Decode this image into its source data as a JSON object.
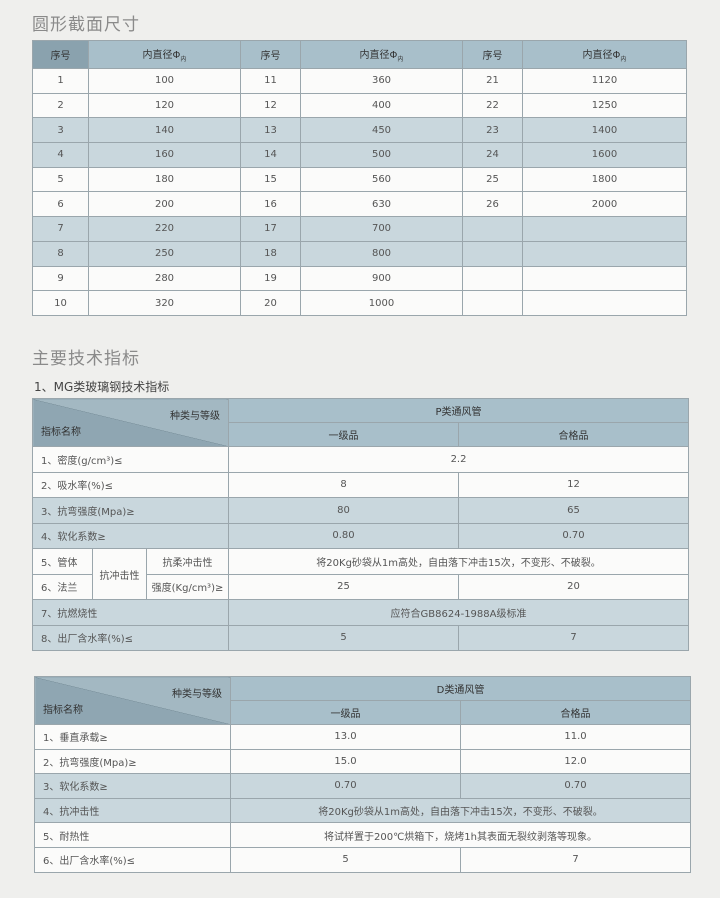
{
  "section1": {
    "title": "圆形截面尺寸",
    "headers": [
      "序号",
      "内直径Φ",
      "序号",
      "内直径Φ",
      "序号",
      "内直径Φ"
    ],
    "header_sub": "内",
    "rows": [
      [
        "1",
        "100",
        "11",
        "360",
        "21",
        "1120"
      ],
      [
        "2",
        "120",
        "12",
        "400",
        "22",
        "1250"
      ],
      [
        "3",
        "140",
        "13",
        "450",
        "23",
        "1400"
      ],
      [
        "4",
        "160",
        "14",
        "500",
        "24",
        "1600"
      ],
      [
        "5",
        "180",
        "15",
        "560",
        "25",
        "1800"
      ],
      [
        "6",
        "200",
        "16",
        "630",
        "26",
        "2000"
      ],
      [
        "7",
        "220",
        "17",
        "700",
        "",
        ""
      ],
      [
        "8",
        "250",
        "18",
        "800",
        "",
        ""
      ],
      [
        "9",
        "280",
        "19",
        "900",
        "",
        ""
      ],
      [
        "10",
        "320",
        "20",
        "1000",
        "",
        ""
      ]
    ],
    "shaded_rows": [
      2,
      3,
      6,
      7
    ]
  },
  "section2": {
    "title": "主要技术指标",
    "subtitle": "1、MG类玻璃钢技术指标",
    "table1": {
      "corner_top": "种类与等级",
      "corner_bottom": "指标名称",
      "group": "P类通风管",
      "grades": [
        "一级品",
        "合格品"
      ],
      "rows": [
        {
          "name": "1、密度(g/cm³)≤",
          "merged": "2.2"
        },
        {
          "name": "2、吸水率(%)≤",
          "v1": "8",
          "v2": "12"
        },
        {
          "name": "3、抗弯强度(Mpa)≥",
          "v1": "80",
          "v2": "65"
        },
        {
          "name": "4、软化系数≥",
          "v1": "0.80",
          "v2": "0.70"
        },
        {
          "name": "5、管体",
          "group": "抗冲击性",
          "sub": "抗柔冲击性",
          "merged": "将20Kg砂袋从1m高处，自由落下冲击15次，不变形、不破裂。"
        },
        {
          "name": "6、法兰",
          "sub": "强度(Kg/cm³)≥",
          "v1": "25",
          "v2": "20"
        },
        {
          "name": "7、抗燃烧性",
          "merged": "应符合GB8624-1988A级标准"
        },
        {
          "name": "8、出厂含水率(%)≤",
          "v1": "5",
          "v2": "7"
        }
      ]
    },
    "table2": {
      "corner_top": "种类与等级",
      "corner_bottom": "指标名称",
      "group": "D类通风管",
      "grades": [
        "一级品",
        "合格品"
      ],
      "rows": [
        {
          "name": "1、垂直承载≥",
          "v1": "13.0",
          "v2": "11.0"
        },
        {
          "name": "2、抗弯强度(Mpa)≥",
          "v1": "15.0",
          "v2": "12.0"
        },
        {
          "name": "3、软化系数≥",
          "v1": "0.70",
          "v2": "0.70"
        },
        {
          "name": "4、抗冲击性",
          "merged": "将20Kg砂袋从1m高处，自由落下冲击15次，不变形、不破裂。"
        },
        {
          "name": "5、耐热性",
          "merged": "将试样置于200℃烘箱下，烧烤1h其表面无裂纹剥落等现象。"
        },
        {
          "name": "6、出厂含水率(%)≤",
          "v1": "5",
          "v2": "7"
        }
      ]
    }
  }
}
